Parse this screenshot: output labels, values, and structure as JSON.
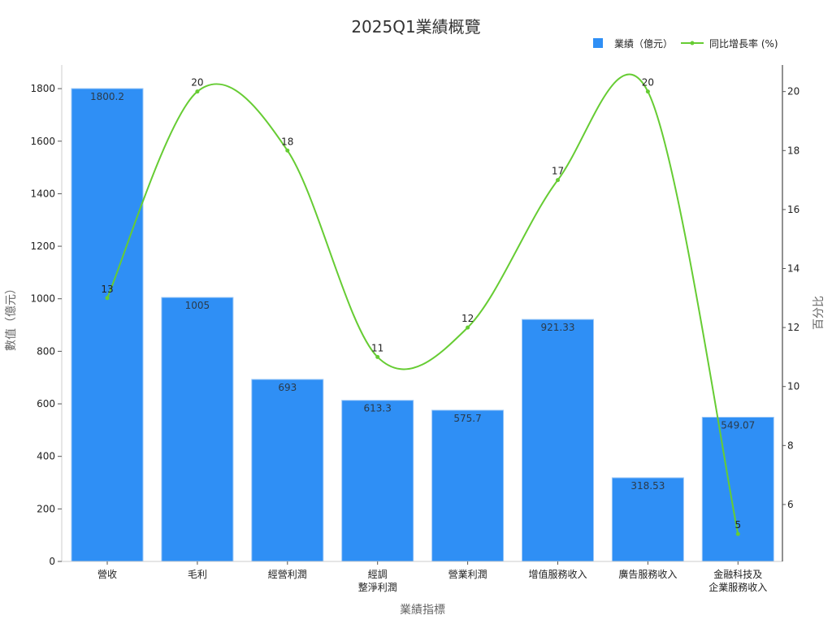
{
  "chart_data": {
    "type": "bar",
    "title": "2025Q1業績概覽",
    "xlabel": "業績指標",
    "ylabel": "數值（億元）",
    "y2label": "百分比",
    "categories": [
      "營收",
      "毛利",
      "經營利潤",
      "經調\n整淨利潤",
      "營業利潤",
      "增值服務收入",
      "廣告服務收入",
      "金融科技及\n企業服務收入"
    ],
    "series": [
      {
        "name": "業績（億元）",
        "type": "bar",
        "axis": "left",
        "color": "#2f8ff5",
        "values": [
          1800.2,
          1005,
          693,
          613.3,
          575.7,
          921.33,
          318.53,
          549.07
        ],
        "labels": [
          "1800.2",
          "1005",
          "693",
          "613.3",
          "575.7",
          "921.33",
          "318.53",
          "549.07"
        ]
      },
      {
        "name": "同比增長率 (%)",
        "type": "line",
        "axis": "right",
        "smooth": true,
        "color": "#66cc33",
        "values": [
          13,
          20,
          18,
          11,
          12,
          17,
          20,
          5
        ],
        "labels": [
          "13",
          "20",
          "18",
          "11",
          "12",
          "17",
          "20",
          "5"
        ]
      }
    ],
    "ylim": [
      0,
      1890
    ],
    "y2lim": [
      4.07,
      20.9
    ],
    "yticks": [
      0,
      200,
      400,
      600,
      800,
      1000,
      1200,
      1400,
      1600,
      1800
    ],
    "y2ticks": [
      6,
      8,
      10,
      12,
      14,
      16,
      18,
      20
    ],
    "grid": false,
    "legend_position": "top-right"
  },
  "legend": {
    "bar_label": "業績（億元）",
    "line_label": "同比增長率 (%)"
  }
}
